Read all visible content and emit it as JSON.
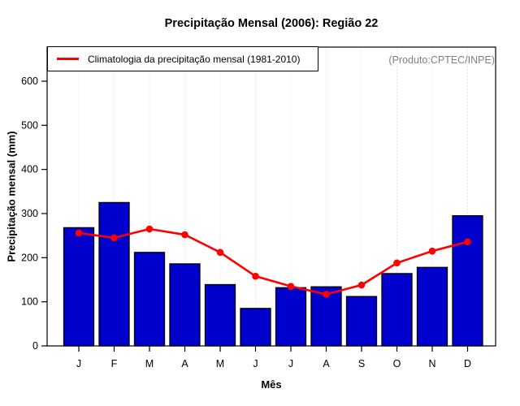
{
  "chart_data": {
    "type": "bar",
    "title": "Precipitação Mensal (2006): Região 22",
    "xlabel": "Mês",
    "ylabel": "Precipitação mensal (mm)",
    "annotation": "(Produto:CPTEC/INPE)",
    "categories": [
      "J",
      "F",
      "M",
      "A",
      "M",
      "J",
      "J",
      "A",
      "S",
      "O",
      "N",
      "D"
    ],
    "series": [
      {
        "name": "Precipitação mensal (2006)",
        "type": "bar",
        "color": "#0000CD",
        "values": [
          268,
          325,
          212,
          186,
          139,
          85,
          132,
          134,
          112,
          164,
          178,
          295
        ]
      },
      {
        "name": "Climatologia da precipitação mensal (1981-2010)",
        "type": "line",
        "color": "#FF0000",
        "values": [
          256,
          245,
          265,
          252,
          212,
          158,
          135,
          117,
          138,
          188,
          215,
          236
        ]
      }
    ],
    "ylim": [
      0,
      600
    ],
    "yticks": [
      0,
      100,
      200,
      300,
      400,
      500,
      600
    ],
    "grid": "vertical-dotted",
    "legend_position": "top-left",
    "colors": {
      "bar_fill": "#0000CD",
      "bar_border": "#000000",
      "climatology_line": "#FF0000",
      "annotation_text": "#808080",
      "gridline": "#D8D8D8"
    }
  }
}
